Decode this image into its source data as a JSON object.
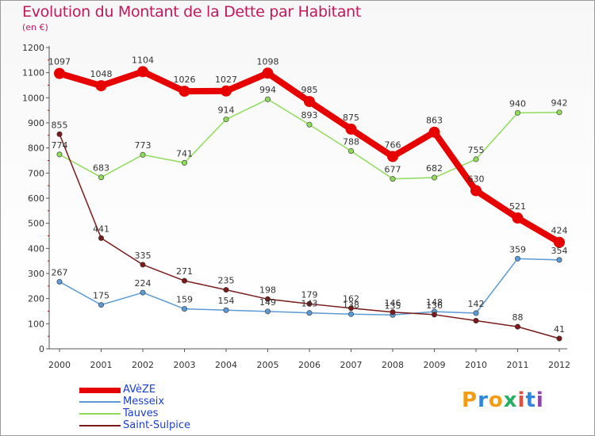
{
  "chart_data": {
    "type": "line",
    "title": "Evolution du Montant de la Dette par Habitant",
    "subtitle": "(en €)",
    "x": [
      "2000",
      "2001",
      "2002",
      "2003",
      "2004",
      "2005",
      "2006",
      "2007",
      "2008",
      "2009",
      "2010",
      "2011",
      "2012"
    ],
    "ylim": [
      0,
      1200
    ],
    "yticks": [
      0,
      100,
      200,
      300,
      400,
      500,
      600,
      700,
      800,
      900,
      1000,
      1100,
      1200
    ],
    "grid": false,
    "legend_position": "bottom-left",
    "series": [
      {
        "name": "AVèZE",
        "color": "#e60000",
        "width": 8,
        "values": [
          1097,
          1048,
          1104,
          1026,
          1027,
          1098,
          985,
          875,
          766,
          863,
          630,
          521,
          424
        ],
        "labels": [
          "1097",
          "1048",
          "1104",
          "1026",
          "1027",
          "1098",
          "985",
          "875",
          "766",
          "863",
          "630",
          "521",
          "424"
        ]
      },
      {
        "name": "Messeix",
        "color": "#5b9bd5",
        "width": 1.5,
        "values": [
          267,
          175,
          224,
          159,
          154,
          149,
          143,
          138,
          135,
          148,
          142,
          359,
          354
        ],
        "labels": [
          "267",
          "175",
          "224",
          "159",
          "154",
          "149",
          "143",
          "138",
          "135",
          "148",
          "142",
          "359",
          "354"
        ]
      },
      {
        "name": "Tauves",
        "color": "#8fdc5a",
        "width": 1.5,
        "values": [
          774,
          683,
          773,
          741,
          914,
          994,
          893,
          788,
          677,
          682,
          755,
          940,
          942
        ],
        "labels": [
          "774",
          "683",
          "773",
          "741",
          "914",
          "994",
          "893",
          "788",
          "677",
          "682",
          "755",
          "940",
          "942"
        ]
      },
      {
        "name": "Saint-Sulpice",
        "color": "#7a1a1a",
        "width": 1.5,
        "values": [
          855,
          441,
          335,
          271,
          235,
          198,
          179,
          162,
          146,
          136,
          112,
          88,
          41
        ],
        "labels": [
          "855",
          "441",
          "335",
          "271",
          "235",
          "198",
          "179",
          "162",
          "146",
          "136",
          "",
          "88",
          "41"
        ]
      }
    ]
  },
  "logo": {
    "letters": [
      "P",
      "r",
      "o",
      "x",
      "i",
      "t",
      "i"
    ],
    "colors": [
      "#f39c12",
      "#2e86de",
      "#f39c12",
      "#27ae60",
      "#e74c3c",
      "#2e86de",
      "#8e44ad"
    ]
  }
}
